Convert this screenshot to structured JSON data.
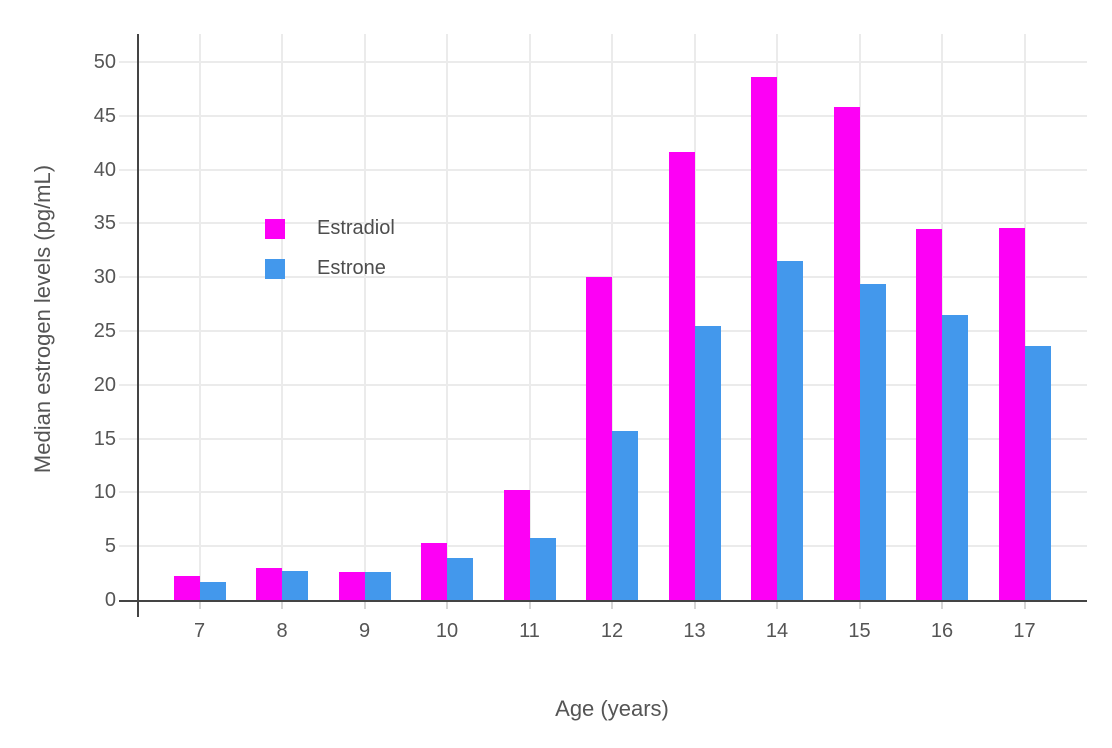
{
  "chart_data": {
    "type": "bar",
    "title": "",
    "xlabel": "Age (years)",
    "ylabel": "Median estrogen levels (pg/mL)",
    "categories": [
      "7",
      "8",
      "9",
      "10",
      "11",
      "12",
      "13",
      "14",
      "15",
      "16",
      "17"
    ],
    "series": [
      {
        "name": "Estradiol",
        "color": "#FD00F5",
        "values": [
          2.2,
          3.0,
          2.6,
          5.3,
          10.2,
          30.0,
          41.6,
          48.6,
          45.8,
          34.5,
          34.6
        ]
      },
      {
        "name": "Estrone",
        "color": "#4398EC",
        "values": [
          1.7,
          2.7,
          2.6,
          3.9,
          5.8,
          15.7,
          25.5,
          31.5,
          29.4,
          26.5,
          23.6
        ]
      }
    ],
    "ylim": [
      0,
      52.6
    ],
    "yticks": [
      0,
      5,
      10,
      15,
      20,
      25,
      30,
      35,
      40,
      45,
      50
    ],
    "grid": "horizontal gridlines every 5 units, vertical gridline at each category center",
    "legend_position": "inside top-left of plot area",
    "legend_border": "none"
  },
  "colors": {
    "background": "#FFFFFF",
    "axis_line": "#444444",
    "gridline": "#EBEBEB",
    "x_tick_mark": "#D6D6D6",
    "y_tick_mark": "#ECECEC",
    "tick_text": "#555555",
    "axis_title_text": "#555555",
    "legend_text": "#4D4D4D"
  }
}
